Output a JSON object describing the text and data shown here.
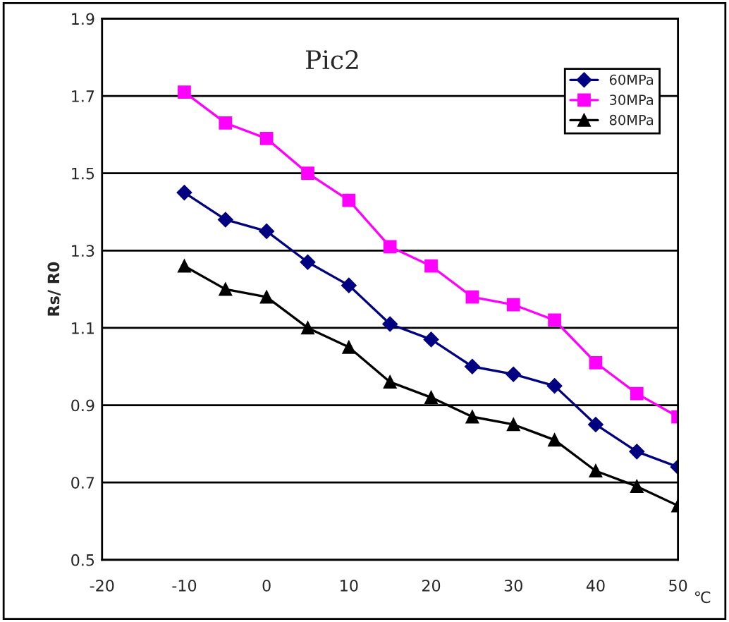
{
  "chart_data": {
    "type": "line",
    "title": "Pic2",
    "xlabel": "℃",
    "ylabel": "Rs/ R0",
    "x": [
      -10,
      -5,
      0,
      5,
      10,
      15,
      20,
      25,
      30,
      35,
      40,
      45,
      50
    ],
    "series": [
      {
        "name": "60MPa",
        "color": "#000080",
        "marker": "diamond",
        "values": [
          1.45,
          1.38,
          1.35,
          1.27,
          1.21,
          1.11,
          1.07,
          1.0,
          0.98,
          0.95,
          0.85,
          0.78,
          0.74
        ]
      },
      {
        "name": "30MPa",
        "color": "#ff00ff",
        "marker": "square",
        "values": [
          1.71,
          1.63,
          1.59,
          1.5,
          1.43,
          1.31,
          1.26,
          1.18,
          1.16,
          1.12,
          1.01,
          0.93,
          0.87
        ]
      },
      {
        "name": "80MPa",
        "color": "#000000",
        "marker": "triangle",
        "values": [
          1.26,
          1.2,
          1.18,
          1.1,
          1.05,
          0.96,
          0.92,
          0.87,
          0.85,
          0.81,
          0.73,
          0.69,
          0.64
        ]
      }
    ],
    "xlim": [
      -20,
      50
    ],
    "xticks": [
      -20,
      -10,
      0,
      10,
      20,
      30,
      40,
      50
    ],
    "ylim": [
      0.5,
      1.9
    ],
    "yticks": [
      0.5,
      0.7,
      0.9,
      1.1,
      1.3,
      1.5,
      1.7,
      1.9
    ],
    "grid": "y",
    "legend": "top right"
  }
}
